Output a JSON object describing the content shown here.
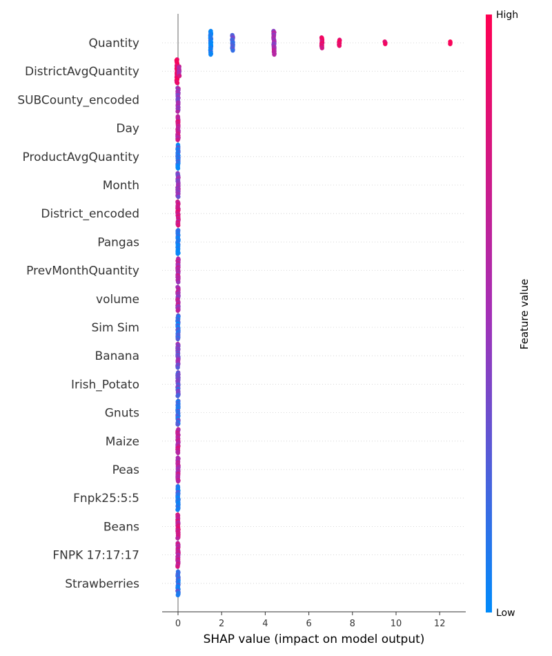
{
  "chart_data": {
    "type": "scatter",
    "subtype": "shap-beeswarm",
    "title": "",
    "xlabel": "SHAP value (impact on model output)",
    "ylabel": "",
    "xlim": [
      -0.9,
      13.2
    ],
    "xticks": [
      "0",
      "2",
      "4",
      "6",
      "8",
      "10",
      "12"
    ],
    "grid": "horizontal-dotted",
    "colorbar": {
      "title": "Feature value",
      "high_label": "High",
      "low_label": "Low",
      "low_color": "#008bfb",
      "high_color": "#ff0052",
      "placement": "right"
    },
    "features": [
      {
        "name": "Quantity",
        "points": [
          {
            "x": 1.5,
            "c": 0.05,
            "spread": 1.0
          },
          {
            "x": 2.5,
            "c": 0.25,
            "spread": 0.65
          },
          {
            "x": 4.4,
            "c": 0.55,
            "spread": 1.0
          },
          {
            "x": 6.6,
            "c": 0.85,
            "spread": 0.45
          },
          {
            "x": 7.4,
            "c": 0.92,
            "spread": 0.25
          },
          {
            "x": 9.5,
            "c": 0.95,
            "spread": 0.1
          },
          {
            "x": 12.5,
            "c": 1.0,
            "spread": 0.1
          }
        ]
      },
      {
        "name": "DistrictAvgQuantity",
        "points": [
          {
            "x": -0.05,
            "c": 0.95,
            "spread": 1.0
          },
          {
            "x": 0.05,
            "c": 0.6,
            "spread": 0.4
          }
        ]
      },
      {
        "name": "SUBCounty_encoded",
        "points": [
          {
            "x": 0.0,
            "c": 0.5,
            "spread": 1.0
          }
        ]
      },
      {
        "name": "Day",
        "points": [
          {
            "x": 0.0,
            "c": 0.7,
            "spread": 1.0
          }
        ]
      },
      {
        "name": "ProductAvgQuantity",
        "points": [
          {
            "x": 0.0,
            "c": 0.1,
            "spread": 1.0
          }
        ]
      },
      {
        "name": "Month",
        "points": [
          {
            "x": 0.0,
            "c": 0.45,
            "spread": 1.0
          }
        ]
      },
      {
        "name": "District_encoded",
        "points": [
          {
            "x": 0.0,
            "c": 0.75,
            "spread": 1.0
          }
        ]
      },
      {
        "name": "Pangas",
        "points": [
          {
            "x": 0.0,
            "c": 0.05,
            "spread": 1.0
          }
        ]
      },
      {
        "name": "PrevMonthQuantity",
        "points": [
          {
            "x": 0.0,
            "c": 0.6,
            "spread": 1.0
          }
        ]
      },
      {
        "name": "volume",
        "points": [
          {
            "x": 0.0,
            "c": 0.55,
            "spread": 1.0
          }
        ]
      },
      {
        "name": "Sim Sim",
        "points": [
          {
            "x": 0.0,
            "c": 0.15,
            "spread": 1.0
          }
        ]
      },
      {
        "name": "Banana",
        "points": [
          {
            "x": 0.0,
            "c": 0.4,
            "spread": 1.0
          }
        ]
      },
      {
        "name": "Irish_Potato",
        "points": [
          {
            "x": 0.0,
            "c": 0.3,
            "spread": 1.0
          }
        ]
      },
      {
        "name": "Gnuts",
        "points": [
          {
            "x": 0.0,
            "c": 0.2,
            "spread": 1.0
          }
        ]
      },
      {
        "name": "Maize",
        "points": [
          {
            "x": 0.0,
            "c": 0.65,
            "spread": 1.0
          }
        ]
      },
      {
        "name": "Peas",
        "points": [
          {
            "x": 0.0,
            "c": 0.6,
            "spread": 1.0
          }
        ]
      },
      {
        "name": "Fnpk25:5:5",
        "points": [
          {
            "x": 0.0,
            "c": 0.1,
            "spread": 1.0
          }
        ]
      },
      {
        "name": "Beans",
        "points": [
          {
            "x": 0.0,
            "c": 0.7,
            "spread": 1.0
          }
        ]
      },
      {
        "name": "FNPK 17:17:17",
        "points": [
          {
            "x": 0.0,
            "c": 0.65,
            "spread": 1.0
          }
        ]
      },
      {
        "name": "Strawberries",
        "points": [
          {
            "x": 0.0,
            "c": 0.15,
            "spread": 1.0
          }
        ]
      }
    ]
  }
}
